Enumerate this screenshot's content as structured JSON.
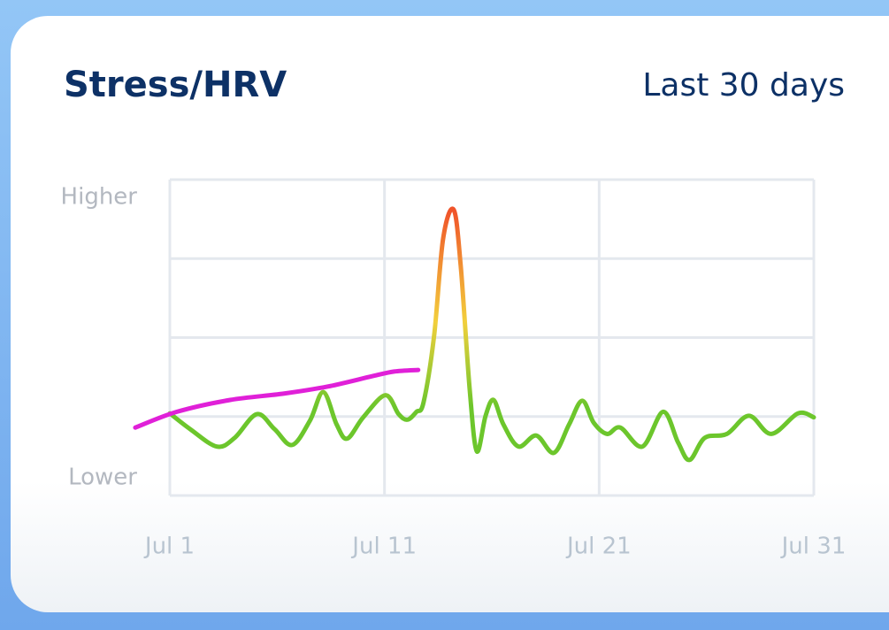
{
  "chart_data": {
    "type": "line",
    "title": "Stress/HRV",
    "subtitle": "Last 30 days",
    "xlim": [
      1,
      31
    ],
    "xticks": [
      {
        "value": 1,
        "label": "Jul 1"
      },
      {
        "value": 11,
        "label": "Jul 11"
      },
      {
        "value": 21,
        "label": "Jul 21"
      },
      {
        "value": 31,
        "label": "Jul 31"
      }
    ],
    "ylim": [
      0,
      4
    ],
    "yticks": [
      {
        "value": 4,
        "label": "Higher"
      },
      {
        "value": 0,
        "label": "Lower"
      }
    ],
    "ygrid": [
      0,
      1,
      2,
      3,
      4
    ],
    "grid": true,
    "series": [
      {
        "color": "#6cc62c",
        "gradient": [
          "#6cc62c",
          "#f2cf3c",
          "#f0542a"
        ],
        "x": [
          1.0,
          1.95,
          3.19,
          4.02,
          5.05,
          5.88,
          6.7,
          7.53,
          8.15,
          8.77,
          9.26,
          10.01,
          11.04,
          11.66,
          12.07,
          12.49,
          12.82,
          13.31,
          13.73,
          14.22,
          14.55,
          14.97,
          15.3,
          15.71,
          16.08,
          16.54,
          17.24,
          18.07,
          18.89,
          19.6,
          20.21,
          20.75,
          21.37,
          21.99,
          23.02,
          23.98,
          24.68,
          25.21,
          25.92,
          26.95,
          27.98,
          29.02,
          30.26,
          31.0
        ],
        "values": [
          1.04,
          0.84,
          0.62,
          0.73,
          1.03,
          0.84,
          0.64,
          0.95,
          1.31,
          0.9,
          0.72,
          0.99,
          1.27,
          1.03,
          0.96,
          1.06,
          1.18,
          2.02,
          3.25,
          3.62,
          2.91,
          1.34,
          0.56,
          1.01,
          1.21,
          0.9,
          0.62,
          0.76,
          0.54,
          0.9,
          1.2,
          0.92,
          0.78,
          0.86,
          0.62,
          1.06,
          0.67,
          0.45,
          0.73,
          0.78,
          1.01,
          0.78,
          1.04,
          0.99
        ]
      },
      {
        "color": "#e020d8",
        "x": [
          -0.61,
          1.33,
          3.81,
          6.29,
          8.36,
          10.42,
          11.45,
          12.57
        ],
        "values": [
          0.86,
          1.06,
          1.21,
          1.29,
          1.38,
          1.51,
          1.57,
          1.59
        ]
      }
    ]
  }
}
